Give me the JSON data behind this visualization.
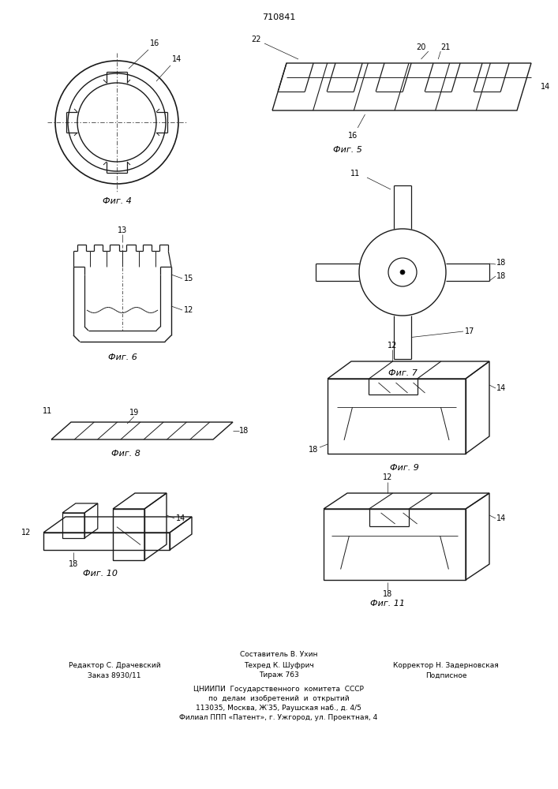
{
  "title": "710841",
  "bg_color": "#ffffff",
  "line_color": "#1a1a1a",
  "fig4_label": "Фиг. 4",
  "fig5_label": "Фиг. 5",
  "fig6_label": "Фиг. 6",
  "fig7_label": "Фиг. 7",
  "fig8_label": "Фиг. 8",
  "fig9_label": "Фиг. 9",
  "fig10_label": "Фиг. 10",
  "fig11_label": "Фиг. 11",
  "footer_col1_r1": "Редактор С. Драчевский",
  "footer_col1_r2": "Заказ 8930/11",
  "footer_col2_r0": "Составитель В. Ухин",
  "footer_col2_r1": "Техред К. Шуфрич",
  "footer_col2_r2": "Тираж 763",
  "footer_col3_r1": "Корректор Н. Задерновская",
  "footer_col3_r2": "Подписное",
  "footer_org1": "ЦНИИПИ  Государственного  комитета  СССР",
  "footer_org2": "по  делам  изобретений  и  открытий",
  "footer_org3": "113035, Москва, Ж‵35, Раушская наб., д. 4/5",
  "footer_org4": "Филиал ППП «Патент», г. Ужгород, ул. Проектная, 4"
}
